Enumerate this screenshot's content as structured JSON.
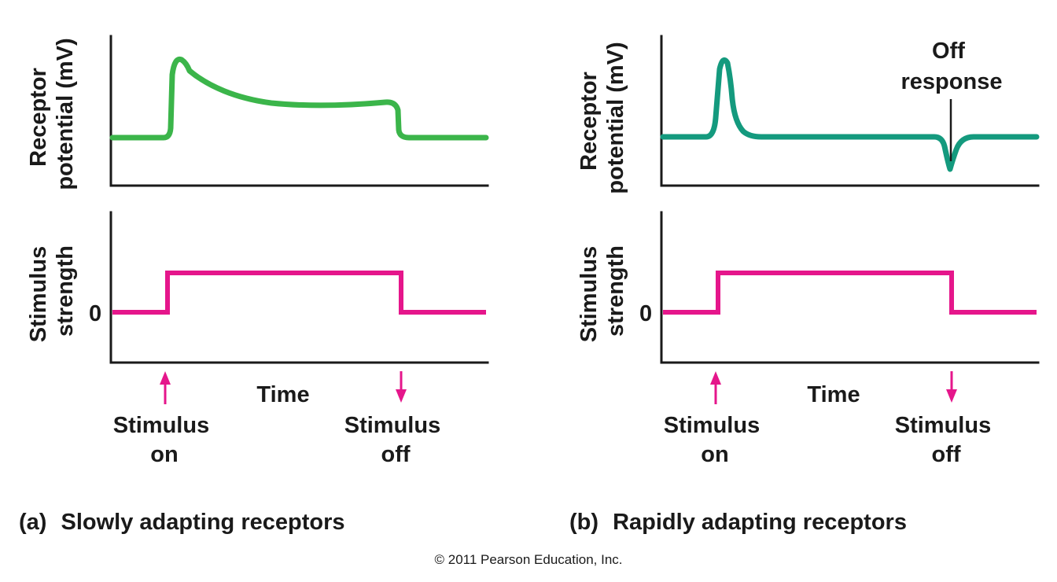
{
  "colors": {
    "receptor_a": "#3bb54a",
    "receptor_b": "#149a7e",
    "stimulus": "#e5168b",
    "axis": "#1a1a1a"
  },
  "panel_a": {
    "caption_letter": "(a)",
    "caption_text": "Slowly adapting receptors",
    "receptor_axis_label_line1": "Receptor",
    "receptor_axis_label_line2": "potential (mV)",
    "stimulus_axis_label_line1": "Stimulus",
    "stimulus_axis_label_line2": "strength",
    "zero_label": "0",
    "time_label": "Time",
    "stimulus_on_line1": "Stimulus",
    "stimulus_on_line2": "on",
    "stimulus_off_line1": "Stimulus",
    "stimulus_off_line2": "off"
  },
  "panel_b": {
    "caption_letter": "(b)",
    "caption_text": "Rapidly adapting receptors",
    "receptor_axis_label_line1": "Receptor",
    "receptor_axis_label_line2": "potential (mV)",
    "stimulus_axis_label_line1": "Stimulus",
    "stimulus_axis_label_line2": "strength",
    "zero_label": "0",
    "time_label": "Time",
    "stimulus_on_line1": "Stimulus",
    "stimulus_on_line2": "on",
    "stimulus_off_line1": "Stimulus",
    "stimulus_off_line2": "off",
    "off_response_line1": "Off",
    "off_response_line2": "response"
  },
  "copyright": "© 2011 Pearson Education, Inc."
}
